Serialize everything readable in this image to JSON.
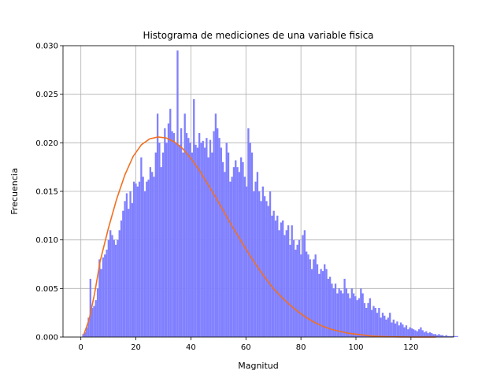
{
  "chart_data": {
    "type": "bar",
    "title": "Histograma de mediciones de una variable fisica",
    "xlabel": "Magnitud",
    "ylabel": "Frecuencia",
    "xlim": [
      -6.5,
      135.5
    ],
    "ylim": [
      0,
      0.03
    ],
    "grid": true,
    "x_ticks": [
      0,
      20,
      40,
      60,
      80,
      100,
      120
    ],
    "x_tick_labels": [
      "0",
      "20",
      "40",
      "60",
      "80",
      "100",
      "120"
    ],
    "y_ticks": [
      0,
      0.005,
      0.01,
      0.015,
      0.02,
      0.025,
      0.03
    ],
    "y_tick_labels": [
      "0.000",
      "0.005",
      "0.010",
      "0.015",
      "0.020",
      "0.025",
      "0.030"
    ],
    "histogram": {
      "name": "",
      "color": "#8080ff",
      "bin_start": 0.5,
      "bin_width": 0.66,
      "values": [
        0.0003,
        0.0005,
        0.001,
        0.002,
        0.006,
        0.003,
        0.0032,
        0.0038,
        0.005,
        0.008,
        0.007,
        0.0082,
        0.0085,
        0.009,
        0.01,
        0.011,
        0.0105,
        0.01,
        0.0095,
        0.01,
        0.011,
        0.012,
        0.013,
        0.014,
        0.0148,
        0.0132,
        0.015,
        0.0138,
        0.016,
        0.0158,
        0.0155,
        0.016,
        0.0185,
        0.0165,
        0.015,
        0.016,
        0.0162,
        0.0175,
        0.017,
        0.0165,
        0.019,
        0.023,
        0.02,
        0.0175,
        0.019,
        0.0215,
        0.02,
        0.022,
        0.0235,
        0.0212,
        0.021,
        0.02,
        0.0295,
        0.0198,
        0.0215,
        0.019,
        0.023,
        0.021,
        0.0205,
        0.02,
        0.019,
        0.0245,
        0.0198,
        0.0195,
        0.021,
        0.02,
        0.0202,
        0.0195,
        0.0205,
        0.0185,
        0.0203,
        0.019,
        0.0212,
        0.023,
        0.0215,
        0.0205,
        0.0195,
        0.018,
        0.017,
        0.02,
        0.019,
        0.016,
        0.0165,
        0.0175,
        0.0182,
        0.0175,
        0.017,
        0.0185,
        0.018,
        0.0165,
        0.0155,
        0.0215,
        0.02,
        0.019,
        0.015,
        0.016,
        0.017,
        0.015,
        0.014,
        0.0155,
        0.0145,
        0.014,
        0.0135,
        0.015,
        0.0125,
        0.013,
        0.012,
        0.0125,
        0.011,
        0.0118,
        0.012,
        0.0105,
        0.011,
        0.0115,
        0.0095,
        0.0115,
        0.01,
        0.009,
        0.0095,
        0.01,
        0.0085,
        0.0105,
        0.011,
        0.0088,
        0.0085,
        0.008,
        0.007,
        0.008,
        0.0085,
        0.0075,
        0.0065,
        0.007,
        0.0068,
        0.0075,
        0.007,
        0.006,
        0.0062,
        0.0055,
        0.005,
        0.0055,
        0.0045,
        0.005,
        0.0048,
        0.0045,
        0.006,
        0.005,
        0.0045,
        0.004,
        0.005,
        0.0045,
        0.0042,
        0.0038,
        0.004,
        0.005,
        0.0045,
        0.0035,
        0.003,
        0.0035,
        0.004,
        0.0028,
        0.0032,
        0.003,
        0.0025,
        0.003,
        0.002,
        0.0025,
        0.0022,
        0.0018,
        0.002,
        0.0025,
        0.0015,
        0.0018,
        0.0014,
        0.0016,
        0.0012,
        0.0015,
        0.0013,
        0.001,
        0.0012,
        0.0008,
        0.001,
        0.0009,
        0.0008,
        0.0007,
        0.0006,
        0.0008,
        0.001,
        0.0007,
        0.0005,
        0.0006,
        0.0004,
        0.0005,
        0.0004,
        0.0003,
        0.0003,
        0.0002,
        0.0003,
        0.0002,
        0.0002,
        0.0001,
        0.0002,
        0.0001,
        0.0001,
        0.0001,
        0.0001,
        0.0001,
        0.0001,
        0.0,
        0.0,
        0.0,
        0.0,
        0.0,
        0.0
      ]
    },
    "line": {
      "name": "",
      "color": "#f07020",
      "points": [
        [
          1,
          0.0002
        ],
        [
          3,
          0.0018
        ],
        [
          5,
          0.0045
        ],
        [
          7,
          0.0078
        ],
        [
          10,
          0.0112
        ],
        [
          13,
          0.0142
        ],
        [
          16,
          0.0167
        ],
        [
          19,
          0.0186
        ],
        [
          22,
          0.0198
        ],
        [
          25,
          0.0204
        ],
        [
          28,
          0.0206
        ],
        [
          31,
          0.0205
        ],
        [
          34,
          0.0201
        ],
        [
          37,
          0.0194
        ],
        [
          40,
          0.0184
        ],
        [
          43,
          0.0172
        ],
        [
          46,
          0.0158
        ],
        [
          49,
          0.0144
        ],
        [
          52,
          0.0129
        ],
        [
          55,
          0.0114
        ],
        [
          58,
          0.01
        ],
        [
          61,
          0.0086
        ],
        [
          64,
          0.0073
        ],
        [
          67,
          0.0061
        ],
        [
          70,
          0.005
        ],
        [
          73,
          0.0041
        ],
        [
          76,
          0.0033
        ],
        [
          79,
          0.0026
        ],
        [
          82,
          0.002
        ],
        [
          85,
          0.0015
        ],
        [
          88,
          0.0011
        ],
        [
          91,
          0.0008
        ],
        [
          94,
          0.0006
        ],
        [
          97,
          0.0004
        ],
        [
          100,
          0.0003
        ],
        [
          103,
          0.0002
        ],
        [
          106,
          0.0001
        ],
        [
          110,
          5e-05
        ],
        [
          114,
          2e-05
        ],
        [
          118,
          1e-05
        ],
        [
          122,
          0.0
        ],
        [
          126,
          0.0
        ],
        [
          129,
          0.0
        ]
      ]
    }
  }
}
